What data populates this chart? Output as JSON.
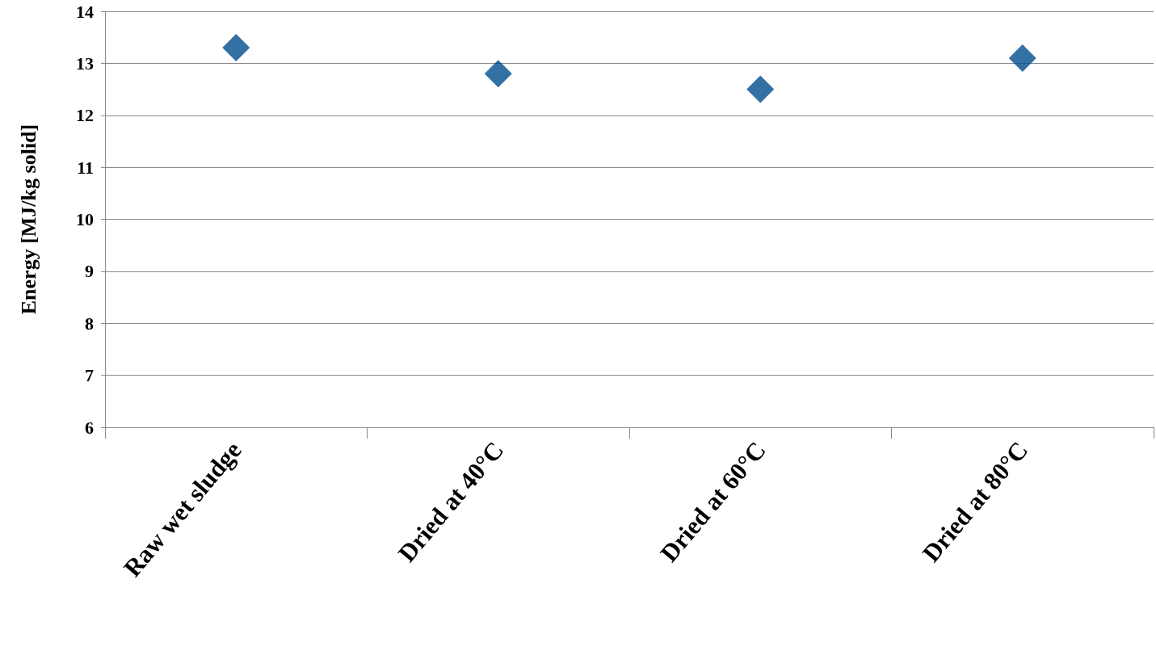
{
  "chart_data": {
    "type": "scatter",
    "ylabel": "Energy [MJ/kg solid]",
    "categories": [
      "Raw wet sludge",
      "Dried at 40°C",
      "Dried at 60°C",
      "Dried at 80°C"
    ],
    "values": [
      13.3,
      12.8,
      12.5,
      13.1
    ],
    "color": "#004c8c",
    "ylim": [
      6,
      14
    ],
    "yticks": [
      6,
      7,
      8,
      9,
      10,
      11,
      12,
      13,
      14
    ],
    "grid": "y",
    "marker": "diamond"
  }
}
